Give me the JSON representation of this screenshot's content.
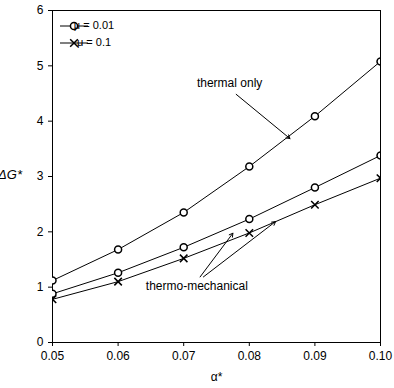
{
  "chart_data": {
    "type": "line",
    "x_label": "α*",
    "y_label": "ΔG*",
    "x": [
      0.05,
      0.06,
      0.07,
      0.08,
      0.09,
      0.1
    ],
    "series": [
      {
        "name": "μ = 0.01",
        "color": "#000000",
        "marker": "circle",
        "values": [
          1.12,
          1.68,
          2.35,
          3.18,
          4.09,
          5.08
        ]
      },
      {
        "name": "μ = 0.01",
        "color": "#000000",
        "marker": "circle",
        "values": [
          0.88,
          1.26,
          1.72,
          2.23,
          2.8,
          3.38
        ]
      },
      {
        "name": "μ = 0.1",
        "color": "#000000",
        "marker": "cross",
        "values": [
          0.78,
          1.1,
          1.52,
          1.98,
          2.49,
          2.97
        ]
      }
    ],
    "annotations": [
      "thermal only",
      "thermo-mechanical"
    ],
    "xlim": [
      0.05,
      0.1
    ],
    "xticks": [
      0.05,
      0.06,
      0.07,
      0.08,
      0.09,
      {
        "value": 0.1,
        "label": "0.10"
      }
    ],
    "ylim": [
      0,
      6
    ],
    "yticks": [
      0,
      1,
      2,
      3,
      4,
      5,
      6
    ],
    "grid": false,
    "legend": "top-left"
  }
}
